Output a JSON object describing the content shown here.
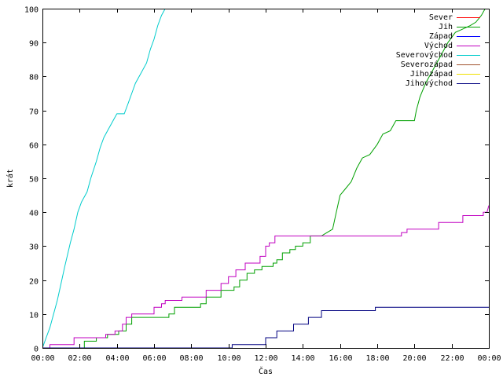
{
  "chart_data": {
    "type": "line",
    "title": "",
    "xlabel": "Čas",
    "ylabel": "krát",
    "xlim": [
      0,
      24
    ],
    "ylim": [
      0,
      100
    ],
    "x_ticks": [
      {
        "value": 0,
        "label": "00:00"
      },
      {
        "value": 2,
        "label": "02:00"
      },
      {
        "value": 4,
        "label": "04:00"
      },
      {
        "value": 6,
        "label": "06:00"
      },
      {
        "value": 8,
        "label": "08:00"
      },
      {
        "value": 10,
        "label": "10:00"
      },
      {
        "value": 12,
        "label": "12:00"
      },
      {
        "value": 14,
        "label": "14:00"
      },
      {
        "value": 16,
        "label": "16:00"
      },
      {
        "value": 18,
        "label": "18:00"
      },
      {
        "value": 20,
        "label": "20:00"
      },
      {
        "value": 22,
        "label": "22:00"
      },
      {
        "value": 24,
        "label": "00:00"
      }
    ],
    "y_ticks": [
      {
        "value": 0,
        "label": "0"
      },
      {
        "value": 10,
        "label": "10"
      },
      {
        "value": 20,
        "label": "20"
      },
      {
        "value": 30,
        "label": "30"
      },
      {
        "value": 40,
        "label": "40"
      },
      {
        "value": 50,
        "label": "50"
      },
      {
        "value": 60,
        "label": "60"
      },
      {
        "value": 70,
        "label": "70"
      },
      {
        "value": 80,
        "label": "80"
      },
      {
        "value": 90,
        "label": "90"
      },
      {
        "value": 100,
        "label": "100"
      }
    ],
    "grid": false,
    "legend_position": "top-right",
    "series": [
      {
        "name": "Sever",
        "color": "#ff0000",
        "points": []
      },
      {
        "name": "Jih",
        "color": "#00a000",
        "points": [
          [
            0,
            0
          ],
          [
            2.25,
            0
          ],
          [
            2.25,
            2
          ],
          [
            2.9,
            2
          ],
          [
            2.9,
            3
          ],
          [
            3.5,
            3
          ],
          [
            3.5,
            4
          ],
          [
            4.1,
            4
          ],
          [
            4.1,
            5
          ],
          [
            4.5,
            5
          ],
          [
            4.5,
            7
          ],
          [
            4.8,
            7
          ],
          [
            4.8,
            9
          ],
          [
            6.8,
            9
          ],
          [
            6.8,
            10
          ],
          [
            7.1,
            10
          ],
          [
            7.1,
            12
          ],
          [
            8.5,
            12
          ],
          [
            8.5,
            13
          ],
          [
            8.8,
            13
          ],
          [
            8.8,
            15
          ],
          [
            9.6,
            15
          ],
          [
            9.6,
            17
          ],
          [
            10.3,
            17
          ],
          [
            10.3,
            18
          ],
          [
            10.6,
            18
          ],
          [
            10.6,
            20
          ],
          [
            11.0,
            20
          ],
          [
            11.0,
            22
          ],
          [
            11.4,
            22
          ],
          [
            11.4,
            23
          ],
          [
            11.8,
            23
          ],
          [
            11.8,
            24
          ],
          [
            12.4,
            24
          ],
          [
            12.4,
            25
          ],
          [
            12.6,
            25
          ],
          [
            12.6,
            26
          ],
          [
            12.9,
            26
          ],
          [
            12.9,
            28
          ],
          [
            13.3,
            28
          ],
          [
            13.3,
            29
          ],
          [
            13.6,
            29
          ],
          [
            13.6,
            30
          ],
          [
            14.0,
            30
          ],
          [
            14.0,
            31
          ],
          [
            14.4,
            31
          ],
          [
            14.4,
            33
          ],
          [
            15.0,
            33
          ],
          [
            15.3,
            34
          ],
          [
            15.6,
            35
          ],
          [
            15.8,
            40
          ],
          [
            16.0,
            45
          ],
          [
            16.3,
            47
          ],
          [
            16.6,
            49
          ],
          [
            16.9,
            53
          ],
          [
            17.2,
            56
          ],
          [
            17.6,
            57
          ],
          [
            18.0,
            60
          ],
          [
            18.3,
            63
          ],
          [
            18.7,
            64
          ],
          [
            19.0,
            67
          ],
          [
            20.0,
            67
          ],
          [
            20.1,
            70
          ],
          [
            20.3,
            74
          ],
          [
            20.6,
            78
          ],
          [
            21.0,
            82
          ],
          [
            21.4,
            86
          ],
          [
            21.8,
            90
          ],
          [
            22.2,
            93
          ],
          [
            22.6,
            94
          ],
          [
            23.0,
            95
          ],
          [
            23.3,
            96
          ],
          [
            23.6,
            98
          ],
          [
            23.8,
            100
          ]
        ]
      },
      {
        "name": "Západ",
        "color": "#0000ff",
        "points": []
      },
      {
        "name": "Východ",
        "color": "#c000c0",
        "points": [
          [
            0,
            0
          ],
          [
            0.4,
            0
          ],
          [
            0.4,
            1
          ],
          [
            1.7,
            1
          ],
          [
            1.7,
            3
          ],
          [
            3.4,
            3
          ],
          [
            3.4,
            4
          ],
          [
            3.9,
            4
          ],
          [
            3.9,
            5
          ],
          [
            4.3,
            5
          ],
          [
            4.3,
            7
          ],
          [
            4.5,
            7
          ],
          [
            4.5,
            9
          ],
          [
            4.8,
            9
          ],
          [
            4.8,
            10
          ],
          [
            6.0,
            10
          ],
          [
            6.0,
            12
          ],
          [
            6.4,
            12
          ],
          [
            6.4,
            13
          ],
          [
            6.6,
            13
          ],
          [
            6.6,
            14
          ],
          [
            7.5,
            14
          ],
          [
            7.5,
            15
          ],
          [
            8.8,
            15
          ],
          [
            8.8,
            17
          ],
          [
            9.6,
            17
          ],
          [
            9.6,
            19
          ],
          [
            10.0,
            19
          ],
          [
            10.0,
            21
          ],
          [
            10.4,
            21
          ],
          [
            10.4,
            23
          ],
          [
            10.9,
            23
          ],
          [
            10.9,
            25
          ],
          [
            11.7,
            25
          ],
          [
            11.7,
            27
          ],
          [
            12.0,
            27
          ],
          [
            12.0,
            30
          ],
          [
            12.2,
            30
          ],
          [
            12.2,
            31
          ],
          [
            12.5,
            31
          ],
          [
            12.5,
            33
          ],
          [
            19.3,
            33
          ],
          [
            19.3,
            34
          ],
          [
            19.6,
            34
          ],
          [
            19.6,
            35
          ],
          [
            21.3,
            35
          ],
          [
            21.3,
            37
          ],
          [
            22.6,
            37
          ],
          [
            22.6,
            39
          ],
          [
            23.7,
            39
          ],
          [
            23.7,
            40
          ],
          [
            23.9,
            40
          ],
          [
            24,
            42
          ]
        ]
      },
      {
        "name": "Severovýchod",
        "color": "#00cccc",
        "points": [
          [
            0,
            0
          ],
          [
            0.2,
            3
          ],
          [
            0.4,
            6
          ],
          [
            0.6,
            10
          ],
          [
            0.8,
            14
          ],
          [
            1.0,
            19
          ],
          [
            1.2,
            24
          ],
          [
            1.5,
            31
          ],
          [
            1.7,
            35
          ],
          [
            1.9,
            40
          ],
          [
            2.1,
            43
          ],
          [
            2.4,
            46
          ],
          [
            2.6,
            50
          ],
          [
            2.9,
            55
          ],
          [
            3.1,
            59
          ],
          [
            3.3,
            62
          ],
          [
            3.5,
            64
          ],
          [
            3.8,
            67
          ],
          [
            4.0,
            69
          ],
          [
            4.4,
            69
          ],
          [
            4.6,
            72
          ],
          [
            4.8,
            75
          ],
          [
            5.0,
            78
          ],
          [
            5.3,
            81
          ],
          [
            5.6,
            84
          ],
          [
            5.8,
            88
          ],
          [
            6.0,
            91
          ],
          [
            6.2,
            95
          ],
          [
            6.4,
            98
          ],
          [
            6.6,
            100
          ]
        ]
      },
      {
        "name": "Severozápad",
        "color": "#a0522d",
        "points": []
      },
      {
        "name": "Jihozápad",
        "color": "#f0e000",
        "points": []
      },
      {
        "name": "Jihovýchod",
        "color": "#000080",
        "points": [
          [
            0,
            0
          ],
          [
            10.2,
            0
          ],
          [
            10.2,
            1
          ],
          [
            12.0,
            1
          ],
          [
            12.0,
            3
          ],
          [
            12.6,
            3
          ],
          [
            12.6,
            5
          ],
          [
            13.5,
            5
          ],
          [
            13.5,
            7
          ],
          [
            14.3,
            7
          ],
          [
            14.3,
            9
          ],
          [
            15.0,
            9
          ],
          [
            15.0,
            11
          ],
          [
            17.9,
            11
          ],
          [
            17.9,
            12
          ],
          [
            24,
            12
          ]
        ]
      }
    ]
  }
}
